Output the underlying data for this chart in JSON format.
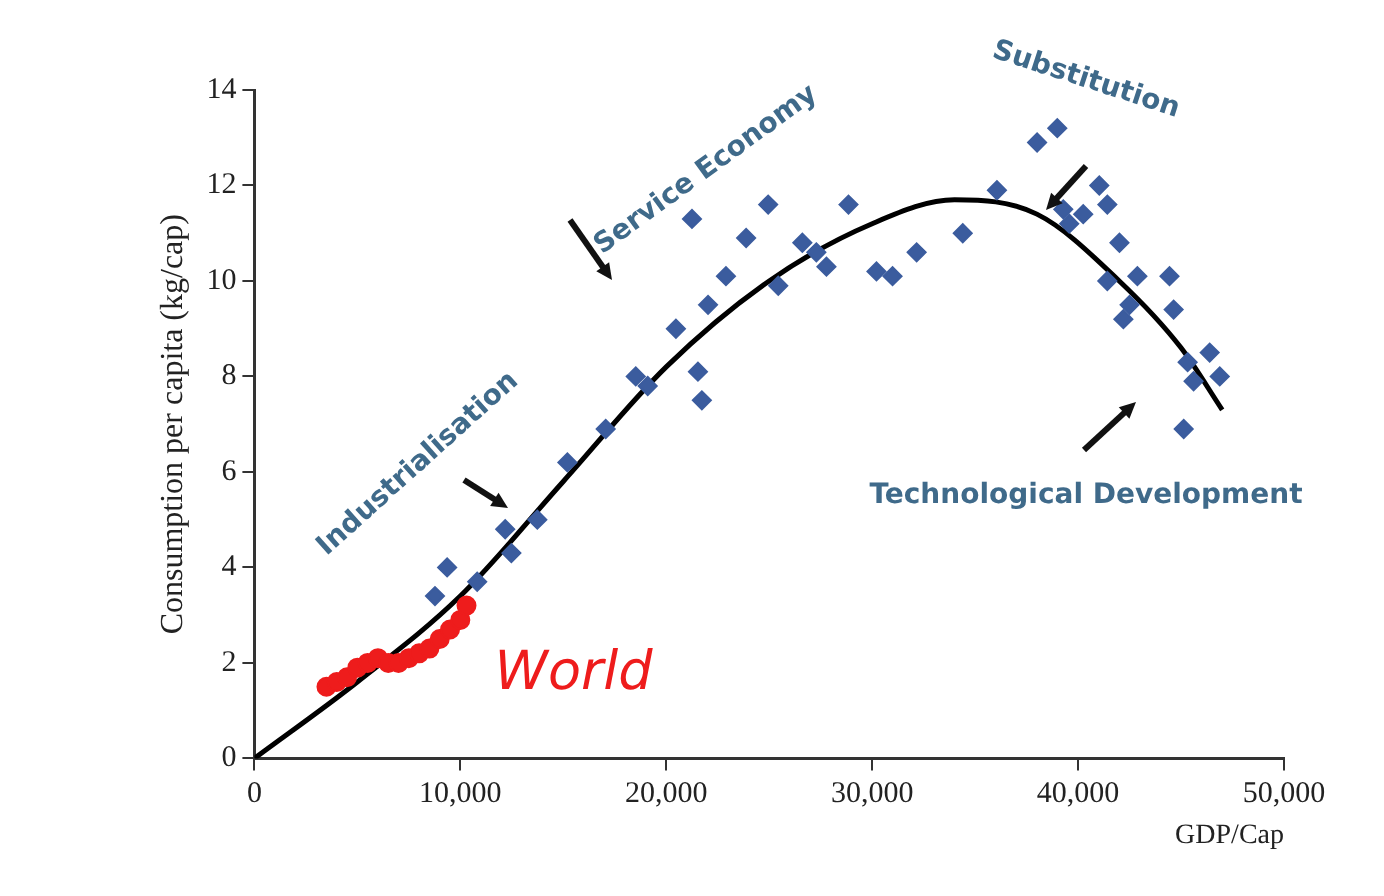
{
  "chart_data": {
    "type": "scatter",
    "xlabel": "GDP/Cap",
    "ylabel": "Consumption per capita (kg/cap)",
    "xlim": [
      0,
      50000
    ],
    "xticks": [
      0,
      {
        "value": 10000,
        "label": "10,000"
      },
      {
        "value": 20000,
        "label": "20,000"
      },
      {
        "value": 30000,
        "label": "30,000"
      },
      {
        "value": 40000,
        "label": "40,000"
      },
      {
        "value": 50000,
        "label": "50,000"
      }
    ],
    "ylim": [
      0,
      14
    ],
    "yticks": [
      0,
      2,
      4,
      6,
      8,
      10,
      12,
      14
    ],
    "grid": false,
    "legend": false,
    "series": [
      {
        "color": "#3b5c9e",
        "marker": "diamond",
        "x": [
          8770,
          9360,
          10820,
          12180,
          12480,
          13740,
          15200,
          17060,
          18520,
          19100,
          20470,
          21250,
          21540,
          21730,
          22030,
          22900,
          23880,
          24950,
          25440,
          26610,
          27290,
          27780,
          28850,
          30210,
          30990,
          32160,
          34400,
          36060,
          38010,
          38990,
          39280,
          39570,
          40250,
          41030,
          41420,
          42010,
          41520,
          41420,
          42500,
          42200,
          42880,
          44150,
          44440,
          44640,
          46390,
          45320,
          45610,
          46880,
          45130
        ],
        "values": [
          3.4,
          4.0,
          3.7,
          4.8,
          4.3,
          5.0,
          6.2,
          6.9,
          8.0,
          7.8,
          9.0,
          11.3,
          8.1,
          7.5,
          9.5,
          10.1,
          10.9,
          11.6,
          9.9,
          10.8,
          10.6,
          10.3,
          11.6,
          10.2,
          10.1,
          10.6,
          11.0,
          11.9,
          12.9,
          13.2,
          11.5,
          11.2,
          11.4,
          12.0,
          11.6,
          10.8,
          null,
          10.0,
          9.5,
          9.2,
          10.1,
          null,
          10.1,
          9.4,
          8.5,
          8.3,
          7.9,
          8.0,
          6.9
        ]
      },
      {
        "name": "World",
        "color": "#ee1c1c",
        "marker": "circle",
        "x": [
          3500,
          4000,
          4500,
          5000,
          5500,
          6000,
          6500,
          7000,
          7500,
          8000,
          8500,
          9000,
          9500,
          10000,
          10300
        ],
        "values": [
          1.5,
          1.6,
          1.7,
          1.9,
          2.0,
          2.1,
          2.0,
          2.0,
          2.1,
          2.2,
          2.3,
          2.5,
          2.7,
          2.9,
          3.2
        ]
      },
      {
        "type": "line",
        "color": "#000000",
        "marker": "none",
        "line_style": "solid",
        "x": [
          0,
          5000,
          10000,
          15000,
          20000,
          25000,
          30000,
          34000,
          38000,
          42000,
          45000,
          47000
        ],
        "values": [
          0,
          1.6,
          3.4,
          5.8,
          8.2,
          10.0,
          11.2,
          11.7,
          11.4,
          10.0,
          8.6,
          7.3
        ]
      }
    ],
    "annotations": [
      "Industrialisation",
      "Service Economy",
      "Substitution",
      "Technological Development"
    ]
  }
}
